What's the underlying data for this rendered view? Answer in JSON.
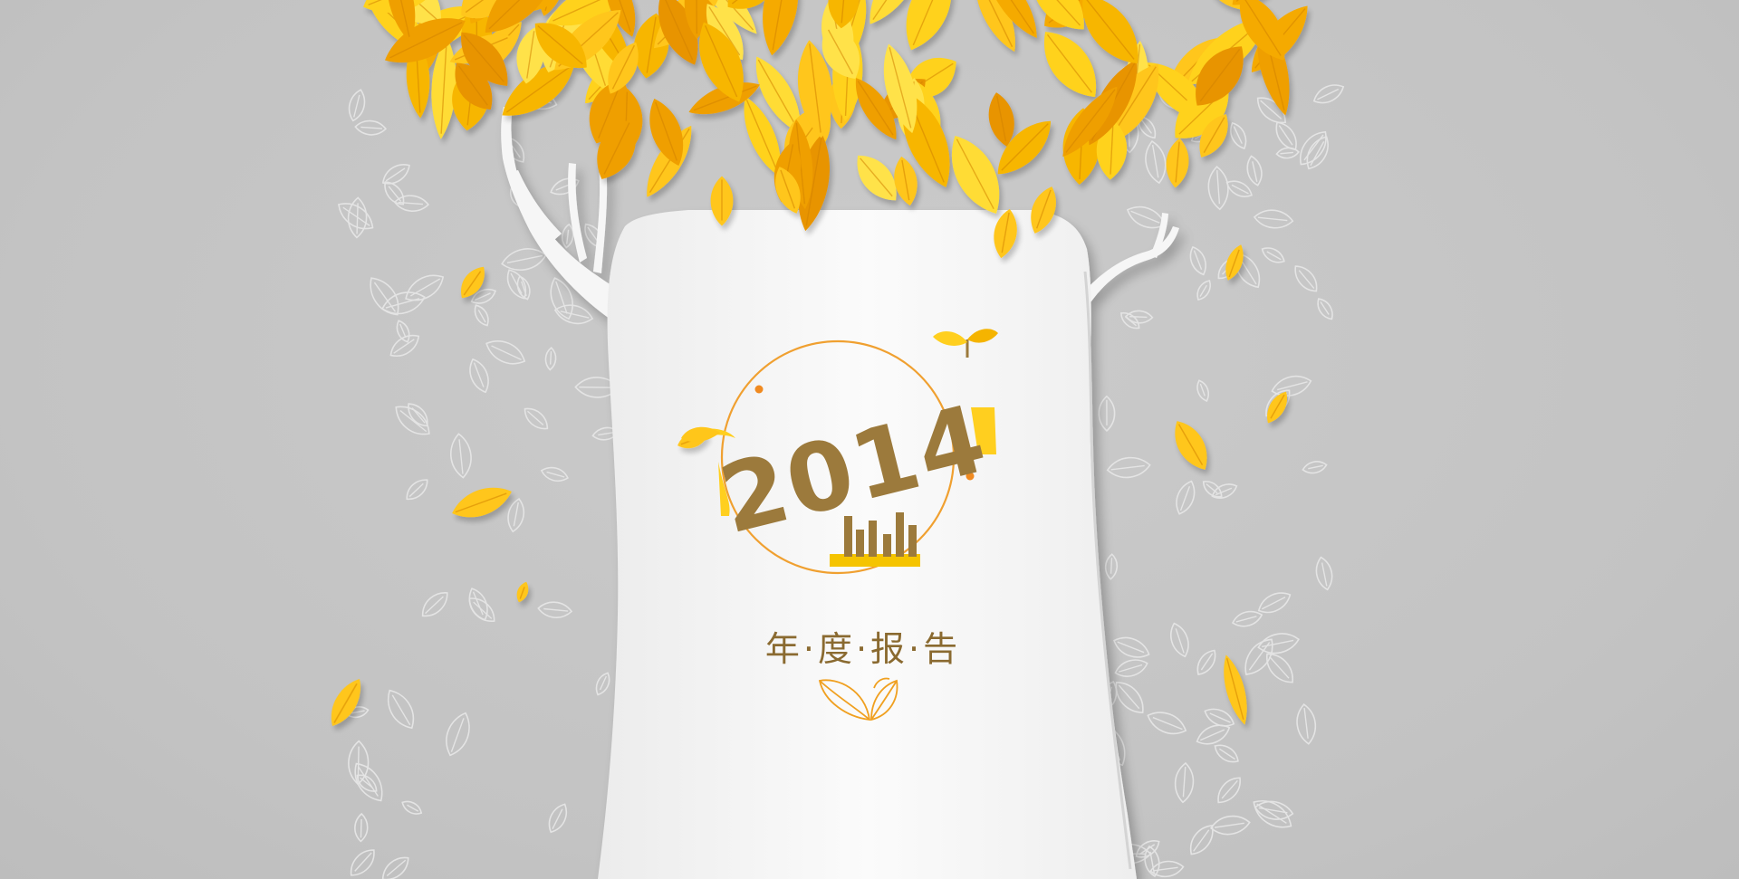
{
  "banner": {
    "year": "2014",
    "title": "年·度·报·告"
  },
  "palette": {
    "background": "#c6c6c6",
    "trunk": "#f4f4f4",
    "leaf_light": "#ffd21e",
    "leaf_dark": "#f5a700",
    "text_brown": "#9c7a3c",
    "ring_orange": "#f0a030"
  },
  "icons": {
    "bar_chart": "bar-chart-icon",
    "leaf_sprout": "leaf-sprout-icon",
    "leaf_emblem": "leaf-emblem-icon"
  }
}
